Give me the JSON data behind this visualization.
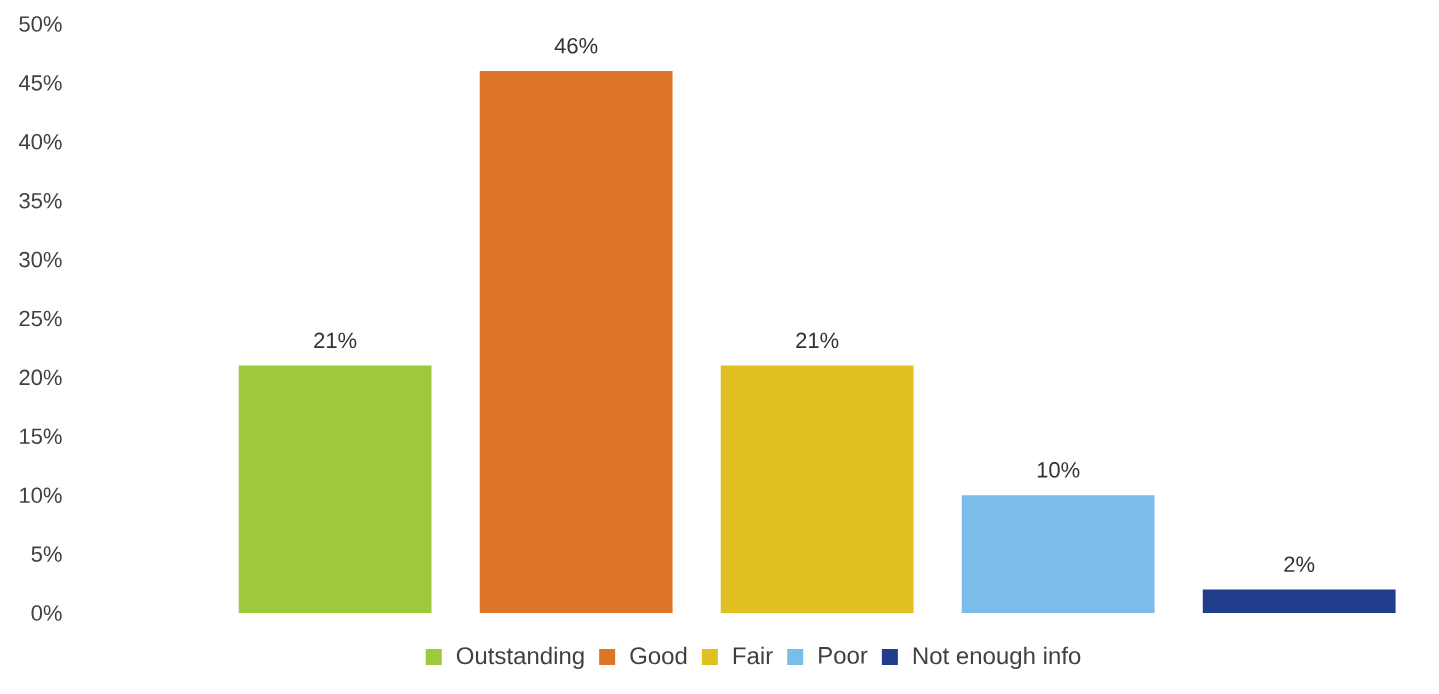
{
  "chart_data": {
    "type": "bar",
    "categories": [
      null
    ],
    "series": [
      {
        "name": "Outstanding",
        "color": "#9fc93c",
        "values": [
          21
        ],
        "value_labels": [
          "21%"
        ]
      },
      {
        "name": "Good",
        "color": "#dd7428",
        "values": [
          46
        ],
        "value_labels": [
          "46%"
        ]
      },
      {
        "name": "Fair",
        "color": "#e0c121",
        "values": [
          21
        ],
        "value_labels": [
          "21%"
        ]
      },
      {
        "name": "Poor",
        "color": "#7bbde8",
        "values": [
          10
        ],
        "value_labels": [
          "10%"
        ]
      },
      {
        "name": "Not enough info",
        "color": "#213e8c",
        "values": [
          2
        ],
        "value_labels": [
          "2%"
        ]
      }
    ],
    "ylim": [
      0,
      50
    ],
    "yticks": [
      {
        "value": 0,
        "label": "0%"
      },
      {
        "value": 5,
        "label": "5%"
      },
      {
        "value": 10,
        "label": "10%"
      },
      {
        "value": 15,
        "label": "15%"
      },
      {
        "value": 20,
        "label": "20%"
      },
      {
        "value": 25,
        "label": "25%"
      },
      {
        "value": 30,
        "label": "30%"
      },
      {
        "value": 35,
        "label": "35%"
      },
      {
        "value": 40,
        "label": "40%"
      },
      {
        "value": 45,
        "label": "45%"
      },
      {
        "value": 50,
        "label": "50%"
      }
    ],
    "grid": false,
    "legend": "bottom"
  }
}
